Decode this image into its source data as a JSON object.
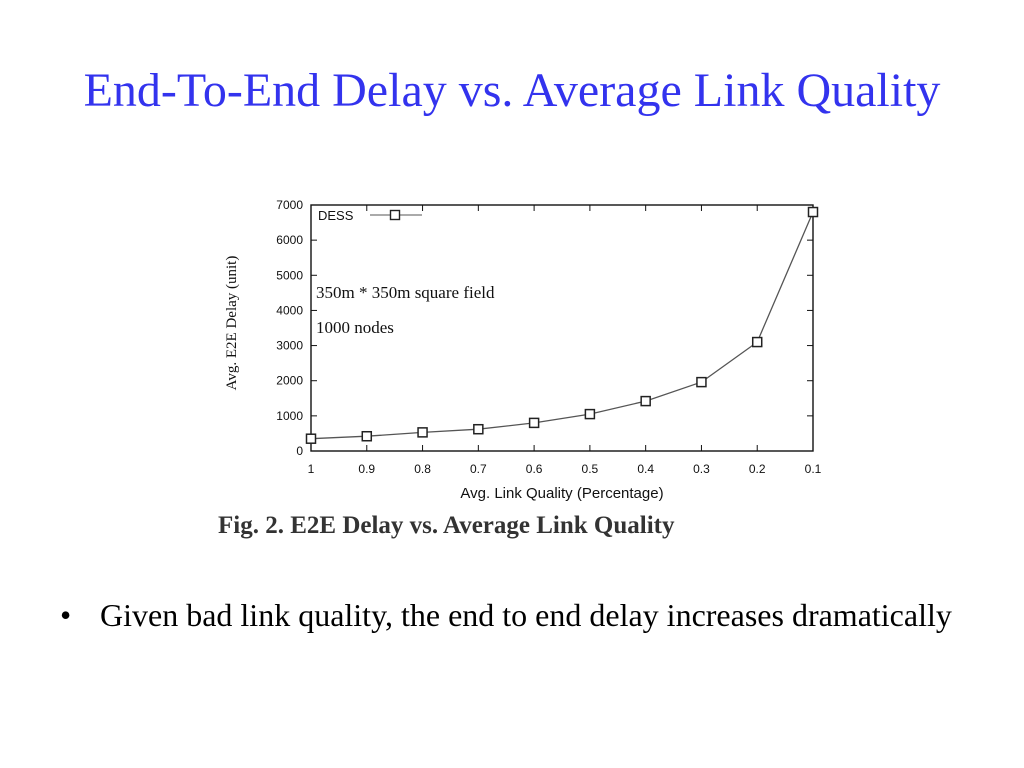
{
  "slide": {
    "title": "End-To-End Delay vs. Average Link Quality",
    "caption": "Fig. 2.  E2E Delay vs. Average Link Quality",
    "bullets": [
      {
        "marker": "•",
        "text": "Given bad link quality, the end to end delay increases dramatically"
      }
    ]
  },
  "chart_data": {
    "type": "line",
    "title": "",
    "xlabel": "Avg. Link Quality (Percentage)",
    "ylabel": "Avg. E2E Delay (unit)",
    "x": [
      1,
      0.9,
      0.8,
      0.7,
      0.6,
      0.5,
      0.4,
      0.3,
      0.2,
      0.1
    ],
    "x_tick_labels": [
      "1",
      "0.9",
      "0.8",
      "0.7",
      "0.6",
      "0.5",
      "0.4",
      "0.3",
      "0.2",
      "0.1"
    ],
    "y_ticks": [
      0,
      1000,
      2000,
      3000,
      4000,
      5000,
      6000,
      7000
    ],
    "y_tick_labels": [
      "0",
      "1000",
      "2000",
      "3000",
      "4000",
      "5000",
      "6000",
      "7000"
    ],
    "ylim": [
      0,
      7000
    ],
    "xlim": [
      1,
      0.1
    ],
    "x_reversed": true,
    "series": [
      {
        "name": "DESS",
        "marker": "square",
        "color": "#555555",
        "values": [
          350,
          420,
          530,
          620,
          800,
          1050,
          1420,
          1960,
          3100,
          6800
        ]
      }
    ],
    "legend": "top-left",
    "grid": false,
    "annotations": [
      "350m * 350m square field",
      "1000 nodes"
    ]
  }
}
